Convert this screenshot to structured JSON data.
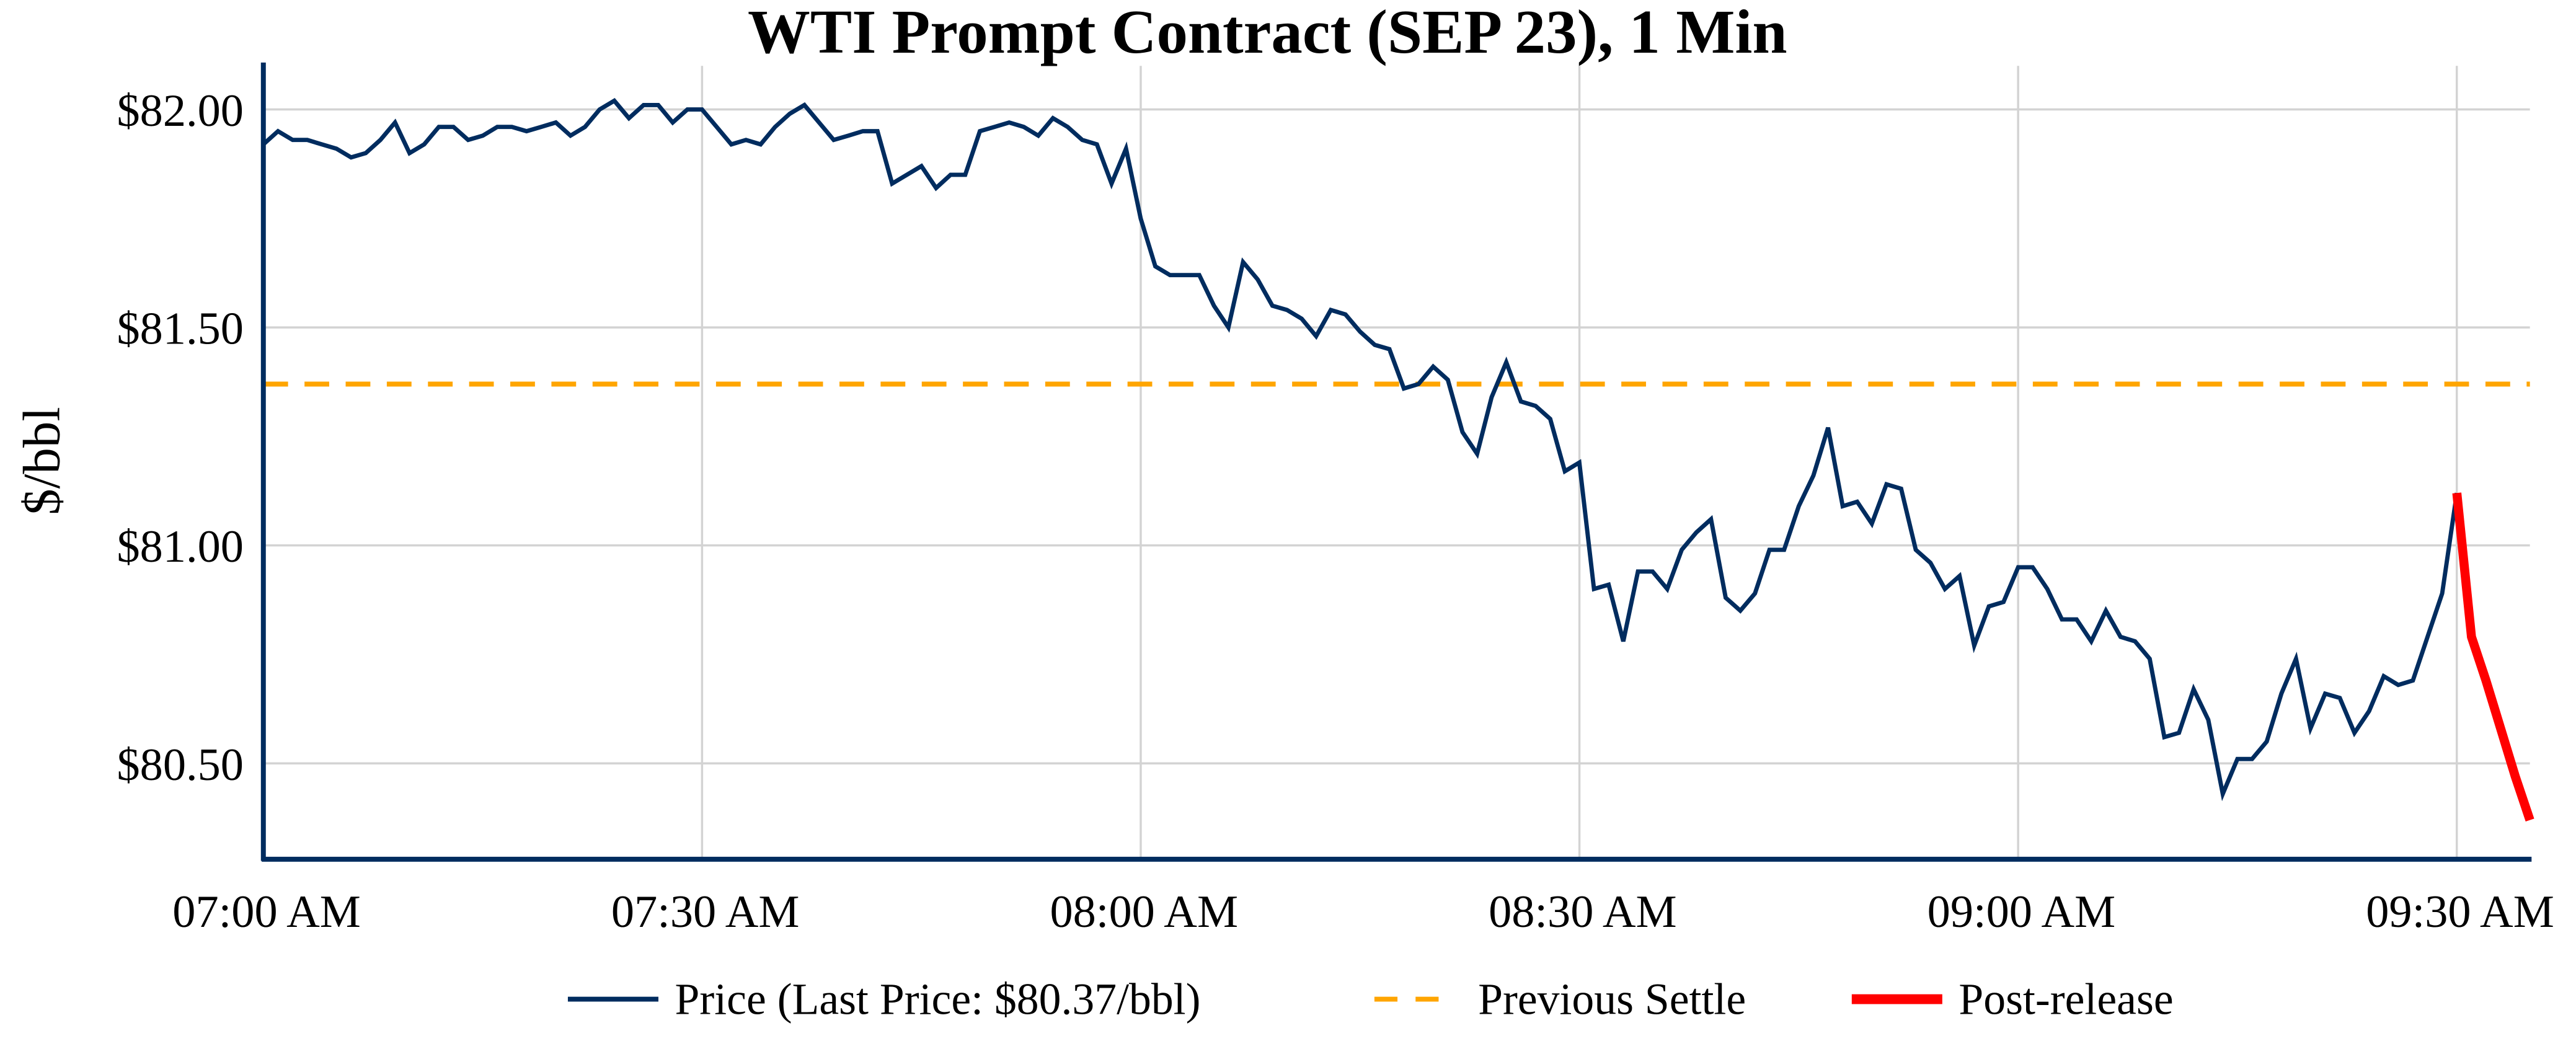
{
  "chart_data": {
    "type": "line",
    "title": "WTI Prompt Contract (SEP 23), 1 Min",
    "xlabel": "",
    "ylabel": "$/bbl",
    "x_ticks": [
      "07:00 AM",
      "07:30 AM",
      "08:00 AM",
      "08:30 AM",
      "09:00 AM",
      "09:30 AM"
    ],
    "y_ticks": [
      "$80.50",
      "$81.00",
      "$81.50",
      "$82.00"
    ],
    "y_tick_values": [
      80.5,
      81.0,
      81.5,
      82.0
    ],
    "x_tick_minutes_after_0700": [
      0,
      30,
      60,
      90,
      120,
      150
    ],
    "xlim_minutes_after_0700": [
      0,
      155
    ],
    "ylim": [
      80.28,
      82.1
    ],
    "grid": true,
    "legend_position": "bottom-center",
    "colors": {
      "price": "#002c5f",
      "settle": "#ffa500",
      "post": "#ff0000",
      "axis": "#002c5f",
      "grid": "#d3d3d3"
    },
    "series": [
      {
        "name": "Price (Last Price: $80.37/bbl)",
        "style": "solid",
        "start_minute": 0,
        "values": [
          81.92,
          81.95,
          81.93,
          81.93,
          81.92,
          81.91,
          81.89,
          81.9,
          81.93,
          81.97,
          81.9,
          81.92,
          81.96,
          81.96,
          81.93,
          81.94,
          81.96,
          81.96,
          81.95,
          81.96,
          81.97,
          81.94,
          81.96,
          82.0,
          82.02,
          81.98,
          82.01,
          82.01,
          81.97,
          82.0,
          82.0,
          81.96,
          81.92,
          81.93,
          81.92,
          81.96,
          81.99,
          82.01,
          81.97,
          81.93,
          81.94,
          81.95,
          81.95,
          81.83,
          81.85,
          81.87,
          81.82,
          81.85,
          81.85,
          81.95,
          81.96,
          81.97,
          81.96,
          81.94,
          81.98,
          81.96,
          81.93,
          81.92,
          81.83,
          81.91,
          81.75,
          81.64,
          81.62,
          81.62,
          81.62,
          81.55,
          81.5,
          81.65,
          81.61,
          81.55,
          81.54,
          81.52,
          81.48,
          81.54,
          81.53,
          81.49,
          81.46,
          81.45,
          81.36,
          81.37,
          81.41,
          81.38,
          81.26,
          81.21,
          81.34,
          81.42,
          81.33,
          81.32,
          81.29,
          81.17,
          81.19,
          80.9,
          80.91,
          80.78,
          80.94,
          80.94,
          80.9,
          80.99,
          81.03,
          81.06,
          80.88,
          80.85,
          80.89,
          80.99,
          80.99,
          81.09,
          81.16,
          81.27,
          81.09,
          81.1,
          81.05,
          81.14,
          81.13,
          80.99,
          80.96,
          80.9,
          80.93,
          80.77,
          80.86,
          80.87,
          80.95,
          80.95,
          80.9,
          80.83,
          80.83,
          80.78,
          80.85,
          80.79,
          80.78,
          80.74,
          80.56,
          80.57,
          80.67,
          80.6,
          80.43,
          80.51,
          80.51,
          80.55,
          80.66,
          80.74,
          80.58,
          80.66,
          80.65,
          80.57,
          80.62,
          80.7,
          80.68,
          80.69,
          80.79,
          80.89,
          81.12
        ]
      },
      {
        "name": "Previous Settle",
        "style": "dashed",
        "value": 81.37
      },
      {
        "name": "Post-release",
        "style": "solid-thick",
        "start_minute": 150,
        "values": [
          81.12,
          80.79,
          80.69,
          80.58,
          80.47,
          80.37
        ]
      }
    ]
  }
}
